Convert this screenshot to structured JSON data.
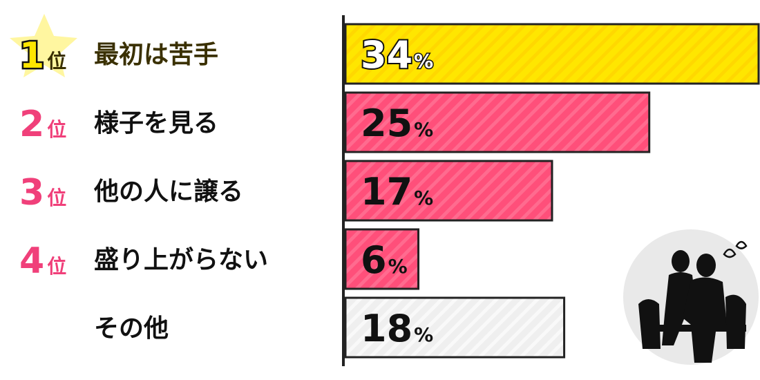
{
  "chart_data": {
    "type": "bar",
    "orientation": "horizontal",
    "categories": [
      "最初は苦手",
      "様子を見る",
      "他の人に譲る",
      "盛り上がらない",
      "その他"
    ],
    "ranks": [
      "1",
      "2",
      "3",
      "4",
      ""
    ],
    "rank_suffix": "位",
    "values": [
      34,
      25,
      17,
      6,
      18
    ],
    "value_suffix": "%",
    "xlim": [
      0,
      34
    ],
    "grid": false,
    "colors": {
      "first": "#ffe600",
      "ranked": "#ff4f7a",
      "other": "#eeeeee",
      "rank_pink": "#f0407a",
      "star": "#fff6a0",
      "axis": "#222222",
      "text": "#111111",
      "circle_bg": "#e9e9e9"
    }
  },
  "illustration": {
    "icon": "audience-silhouette-sweat-icon"
  }
}
